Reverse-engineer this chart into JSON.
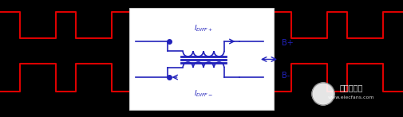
{
  "bg_color": "#000000",
  "signal_color": "#dd0000",
  "circuit_bg": "#ffffff",
  "circuit_color": "#2222bb",
  "circuit_border": "#cccccc",
  "watermark_text": "电子发烧友",
  "watermark_url": "www.elecfans.com",
  "label_bplus": "B+",
  "label_bminus": "B-"
}
